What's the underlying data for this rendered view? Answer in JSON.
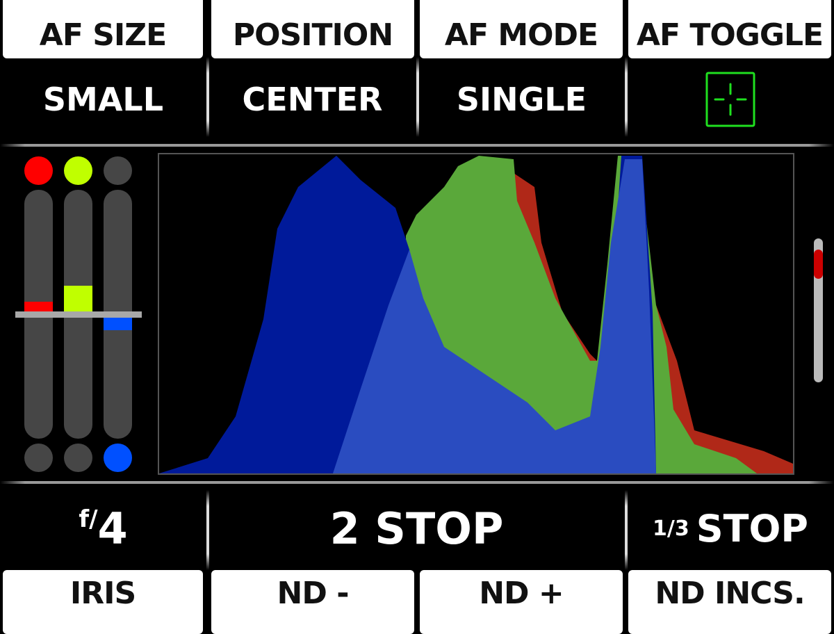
{
  "top_buttons": [
    {
      "label": "AF SIZE",
      "value": "SMALL"
    },
    {
      "label": "POSITION",
      "value": "CENTER"
    },
    {
      "label": "AF MODE",
      "value": "SINGLE"
    },
    {
      "label": "AF TOGGLE",
      "value_icon": "af-target-icon"
    }
  ],
  "bottom_buttons": [
    {
      "label": "IRIS",
      "value_prefix": "f/",
      "value": "4"
    },
    {
      "label": "ND -",
      "value": "2 STOP"
    },
    {
      "label": "ND +"
    },
    {
      "label": "ND INCS.",
      "value_prefix": "1/3",
      "value": "STOP"
    }
  ],
  "rgb_levels": [
    {
      "channel": "red",
      "color": "#ff0000",
      "offset": 0.1
    },
    {
      "channel": "green",
      "color": "#c0ff00",
      "offset": 0.23
    },
    {
      "channel": "blue",
      "color": "#0050ff",
      "offset": -0.13
    }
  ],
  "colors": {
    "af_icon": "#1fe01f",
    "scroll_thumb": "#cc0000"
  }
}
